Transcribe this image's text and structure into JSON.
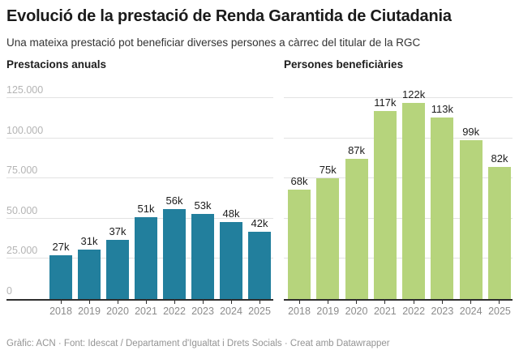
{
  "header": {
    "title": "Evolució de la prestació de Renda Garantida de Ciutadania",
    "subtitle": "Una mateixa prestació pot beneficiar diverses persones a càrrec del titular de la RGC"
  },
  "footer": {
    "credit": "Gràfic: ACN · Font: Idescat / Departament d'Igualtat i Drets Socials · Creat amb Datawrapper"
  },
  "style": {
    "bar_teal": "#227f9d",
    "bar_green": "#b6d47c",
    "gridline_color": "#e2e2e2",
    "axis_color": "#2e2e2e",
    "y_label_color": "#b4b4b4",
    "x_label_color": "#8b8b8b",
    "value_label_color": "#1d1d1d",
    "title_color": "#1a1a1a",
    "footer_color": "#949494",
    "background": "#ffffff"
  },
  "chart_data": [
    {
      "type": "bar",
      "title": "Prestacions anuals",
      "categories": [
        "2018",
        "2019",
        "2020",
        "2021",
        "2022",
        "2023",
        "2024",
        "2025"
      ],
      "values": [
        27000,
        31000,
        37000,
        51000,
        56000,
        53000,
        48000,
        42000
      ],
      "value_labels": [
        "27k",
        "31k",
        "37k",
        "51k",
        "56k",
        "53k",
        "48k",
        "42k"
      ],
      "bar_color": "#227f9d",
      "xlabel": "",
      "ylabel": "",
      "ylim": [
        0,
        125000
      ],
      "yticks": [
        {
          "value": 0,
          "label": "0"
        },
        {
          "value": 25000,
          "label": "25.000"
        },
        {
          "value": 50000,
          "label": "50.000"
        },
        {
          "value": 75000,
          "label": "75.000"
        },
        {
          "value": 100000,
          "label": "100.000"
        },
        {
          "value": 125000,
          "label": "125.000"
        }
      ],
      "show_y_labels": true,
      "grid": true,
      "legend": "none"
    },
    {
      "type": "bar",
      "title": "Persones beneficiàries",
      "categories": [
        "2018",
        "2019",
        "2020",
        "2021",
        "2022",
        "2023",
        "2024",
        "2025"
      ],
      "values": [
        68000,
        75000,
        87000,
        117000,
        122000,
        113000,
        99000,
        82000
      ],
      "value_labels": [
        "68k",
        "75k",
        "87k",
        "117k",
        "122k",
        "113k",
        "99k",
        "82k"
      ],
      "bar_color": "#b6d47c",
      "xlabel": "",
      "ylabel": "",
      "ylim": [
        0,
        125000
      ],
      "yticks": [
        {
          "value": 0,
          "label": ""
        },
        {
          "value": 25000,
          "label": ""
        },
        {
          "value": 50000,
          "label": ""
        },
        {
          "value": 75000,
          "label": ""
        },
        {
          "value": 100000,
          "label": ""
        },
        {
          "value": 125000,
          "label": ""
        }
      ],
      "show_y_labels": false,
      "grid": true,
      "legend": "none"
    }
  ]
}
